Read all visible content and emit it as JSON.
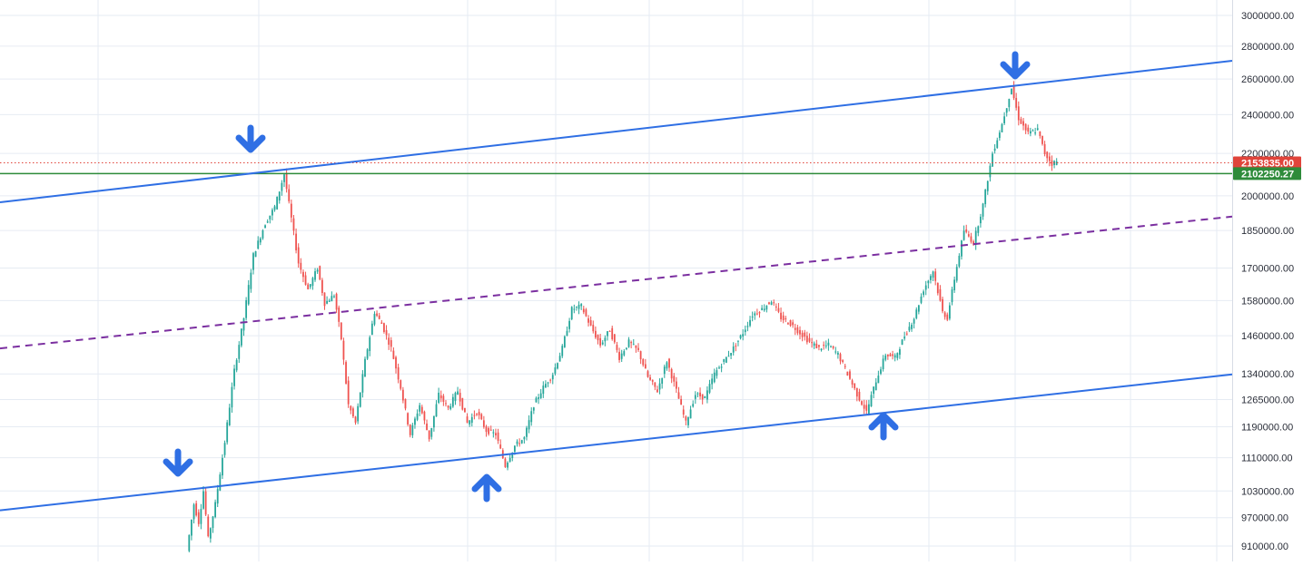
{
  "chart_data": {
    "type": "candlestick",
    "title": "",
    "xlabel": "",
    "ylabel": "",
    "y_scale": "log",
    "ylim": [
      880000,
      3080000
    ],
    "grid": true,
    "y_ticks": [
      "3000000.00",
      "2800000.00",
      "2600000.00",
      "2400000.00",
      "2200000.00",
      "2000000.00",
      "1850000.00",
      "1700000.00",
      "1580000.00",
      "1460000.00",
      "1340000.00",
      "1265000.00",
      "1190000.00",
      "1110000.00",
      "1030000.00",
      "970000.00",
      "910000.00"
    ],
    "y_tick_values": [
      3000000,
      2800000,
      2600000,
      2400000,
      2200000,
      2000000,
      1850000,
      1700000,
      1580000,
      1460000,
      1340000,
      1265000,
      1190000,
      1110000,
      1030000,
      970000,
      910000
    ],
    "price_labels": [
      {
        "text": "2153835.00",
        "value": 2153835,
        "color": "#e0443b",
        "line": "dotted"
      },
      {
        "text": "2102250.27",
        "value": 2102250.27,
        "color": "#2e8b3a",
        "line": "solid"
      }
    ],
    "price_path": [
      [
        0,
        900000
      ],
      [
        3,
        1000000
      ],
      [
        5,
        960000
      ],
      [
        7,
        1030000
      ],
      [
        9,
        925000
      ],
      [
        12,
        1000000
      ],
      [
        16,
        1150000
      ],
      [
        20,
        1350000
      ],
      [
        24,
        1520000
      ],
      [
        28,
        1750000
      ],
      [
        33,
        1880000
      ],
      [
        37,
        1950000
      ],
      [
        41,
        2100000
      ],
      [
        44,
        1900000
      ],
      [
        47,
        1720000
      ],
      [
        51,
        1620000
      ],
      [
        55,
        1700000
      ],
      [
        58,
        1570000
      ],
      [
        62,
        1600000
      ],
      [
        65,
        1450000
      ],
      [
        68,
        1250000
      ],
      [
        71,
        1200000
      ],
      [
        75,
        1380000
      ],
      [
        79,
        1540000
      ],
      [
        82,
        1500000
      ],
      [
        86,
        1420000
      ],
      [
        90,
        1300000
      ],
      [
        94,
        1170000
      ],
      [
        98,
        1250000
      ],
      [
        102,
        1160000
      ],
      [
        106,
        1280000
      ],
      [
        110,
        1240000
      ],
      [
        114,
        1290000
      ],
      [
        118,
        1200000
      ],
      [
        122,
        1230000
      ],
      [
        126,
        1180000
      ],
      [
        130,
        1170000
      ],
      [
        134,
        1090000
      ],
      [
        138,
        1140000
      ],
      [
        142,
        1160000
      ],
      [
        146,
        1250000
      ],
      [
        150,
        1300000
      ],
      [
        154,
        1340000
      ],
      [
        158,
        1420000
      ],
      [
        162,
        1550000
      ],
      [
        166,
        1560000
      ],
      [
        170,
        1490000
      ],
      [
        174,
        1430000
      ],
      [
        178,
        1480000
      ],
      [
        182,
        1390000
      ],
      [
        186,
        1440000
      ],
      [
        190,
        1410000
      ],
      [
        194,
        1330000
      ],
      [
        198,
        1290000
      ],
      [
        202,
        1380000
      ],
      [
        206,
        1290000
      ],
      [
        210,
        1200000
      ],
      [
        214,
        1280000
      ],
      [
        218,
        1270000
      ],
      [
        222,
        1340000
      ],
      [
        226,
        1380000
      ],
      [
        230,
        1420000
      ],
      [
        234,
        1470000
      ],
      [
        238,
        1530000
      ],
      [
        242,
        1550000
      ],
      [
        246,
        1580000
      ],
      [
        250,
        1520000
      ],
      [
        254,
        1500000
      ],
      [
        258,
        1470000
      ],
      [
        262,
        1440000
      ],
      [
        266,
        1420000
      ],
      [
        270,
        1430000
      ],
      [
        274,
        1400000
      ],
      [
        278,
        1340000
      ],
      [
        282,
        1280000
      ],
      [
        286,
        1230000
      ],
      [
        290,
        1320000
      ],
      [
        294,
        1400000
      ],
      [
        298,
        1390000
      ],
      [
        302,
        1460000
      ],
      [
        306,
        1520000
      ],
      [
        310,
        1620000
      ],
      [
        314,
        1690000
      ],
      [
        318,
        1540000
      ],
      [
        320,
        1520000
      ],
      [
        323,
        1660000
      ],
      [
        327,
        1850000
      ],
      [
        331,
        1800000
      ],
      [
        335,
        1960000
      ],
      [
        339,
        2200000
      ],
      [
        343,
        2350000
      ],
      [
        347,
        2550000
      ],
      [
        350,
        2380000
      ],
      [
        354,
        2300000
      ],
      [
        358,
        2320000
      ],
      [
        361,
        2200000
      ],
      [
        364,
        2150000
      ],
      [
        366,
        2160000
      ]
    ],
    "x_count": 367
  },
  "annotations": {
    "upper_channel": {
      "color": "#2f6fe4"
    },
    "lower_channel": {
      "color": "#2f6fe4"
    },
    "mid_channel": {
      "color": "#7b2fa0",
      "dash": true
    },
    "arrows": [
      {
        "name": "arrow-down-peak-1",
        "direction": "down"
      },
      {
        "name": "arrow-down-left-low",
        "direction": "down"
      },
      {
        "name": "arrow-up-trough-1",
        "direction": "up"
      },
      {
        "name": "arrow-up-trough-2",
        "direction": "up"
      },
      {
        "name": "arrow-down-peak-2",
        "direction": "down"
      }
    ],
    "colors": {
      "up": "#26a69a",
      "down": "#ef5350",
      "arrow": "#2f6fe4",
      "grid": "#e6ebf3"
    }
  }
}
